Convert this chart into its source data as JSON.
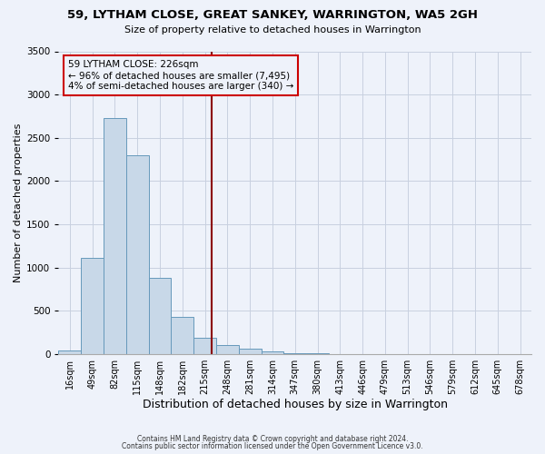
{
  "title": "59, LYTHAM CLOSE, GREAT SANKEY, WARRINGTON, WA5 2GH",
  "subtitle": "Size of property relative to detached houses in Warrington",
  "xlabel": "Distribution of detached houses by size in Warrington",
  "ylabel": "Number of detached properties",
  "footer_line1": "Contains HM Land Registry data © Crown copyright and database right 2024.",
  "footer_line2": "Contains public sector information licensed under the Open Government Licence v3.0.",
  "bin_labels": [
    "16sqm",
    "49sqm",
    "82sqm",
    "115sqm",
    "148sqm",
    "182sqm",
    "215sqm",
    "248sqm",
    "281sqm",
    "314sqm",
    "347sqm",
    "380sqm",
    "413sqm",
    "446sqm",
    "479sqm",
    "513sqm",
    "546sqm",
    "579sqm",
    "612sqm",
    "645sqm",
    "678sqm"
  ],
  "bar_values": [
    40,
    1110,
    2730,
    2300,
    880,
    430,
    190,
    100,
    55,
    30,
    10,
    5,
    0,
    0,
    0,
    0,
    0,
    0,
    0,
    0,
    0
  ],
  "bar_color": "#c8d8e8",
  "bar_edgecolor": "#6699bb",
  "property_label": "59 LYTHAM CLOSE: 226sqm",
  "pct_smaller": 96,
  "n_smaller": 7495,
  "pct_larger": 4,
  "n_larger": 340,
  "vline_color": "#8b0000",
  "vline_x": 6.3,
  "ylim": [
    0,
    3500
  ],
  "yticks": [
    0,
    500,
    1000,
    1500,
    2000,
    2500,
    3000,
    3500
  ],
  "annotation_box_edgecolor": "#cc0000",
  "background_color": "#eef2fa",
  "grid_color": "#c8d0e0"
}
